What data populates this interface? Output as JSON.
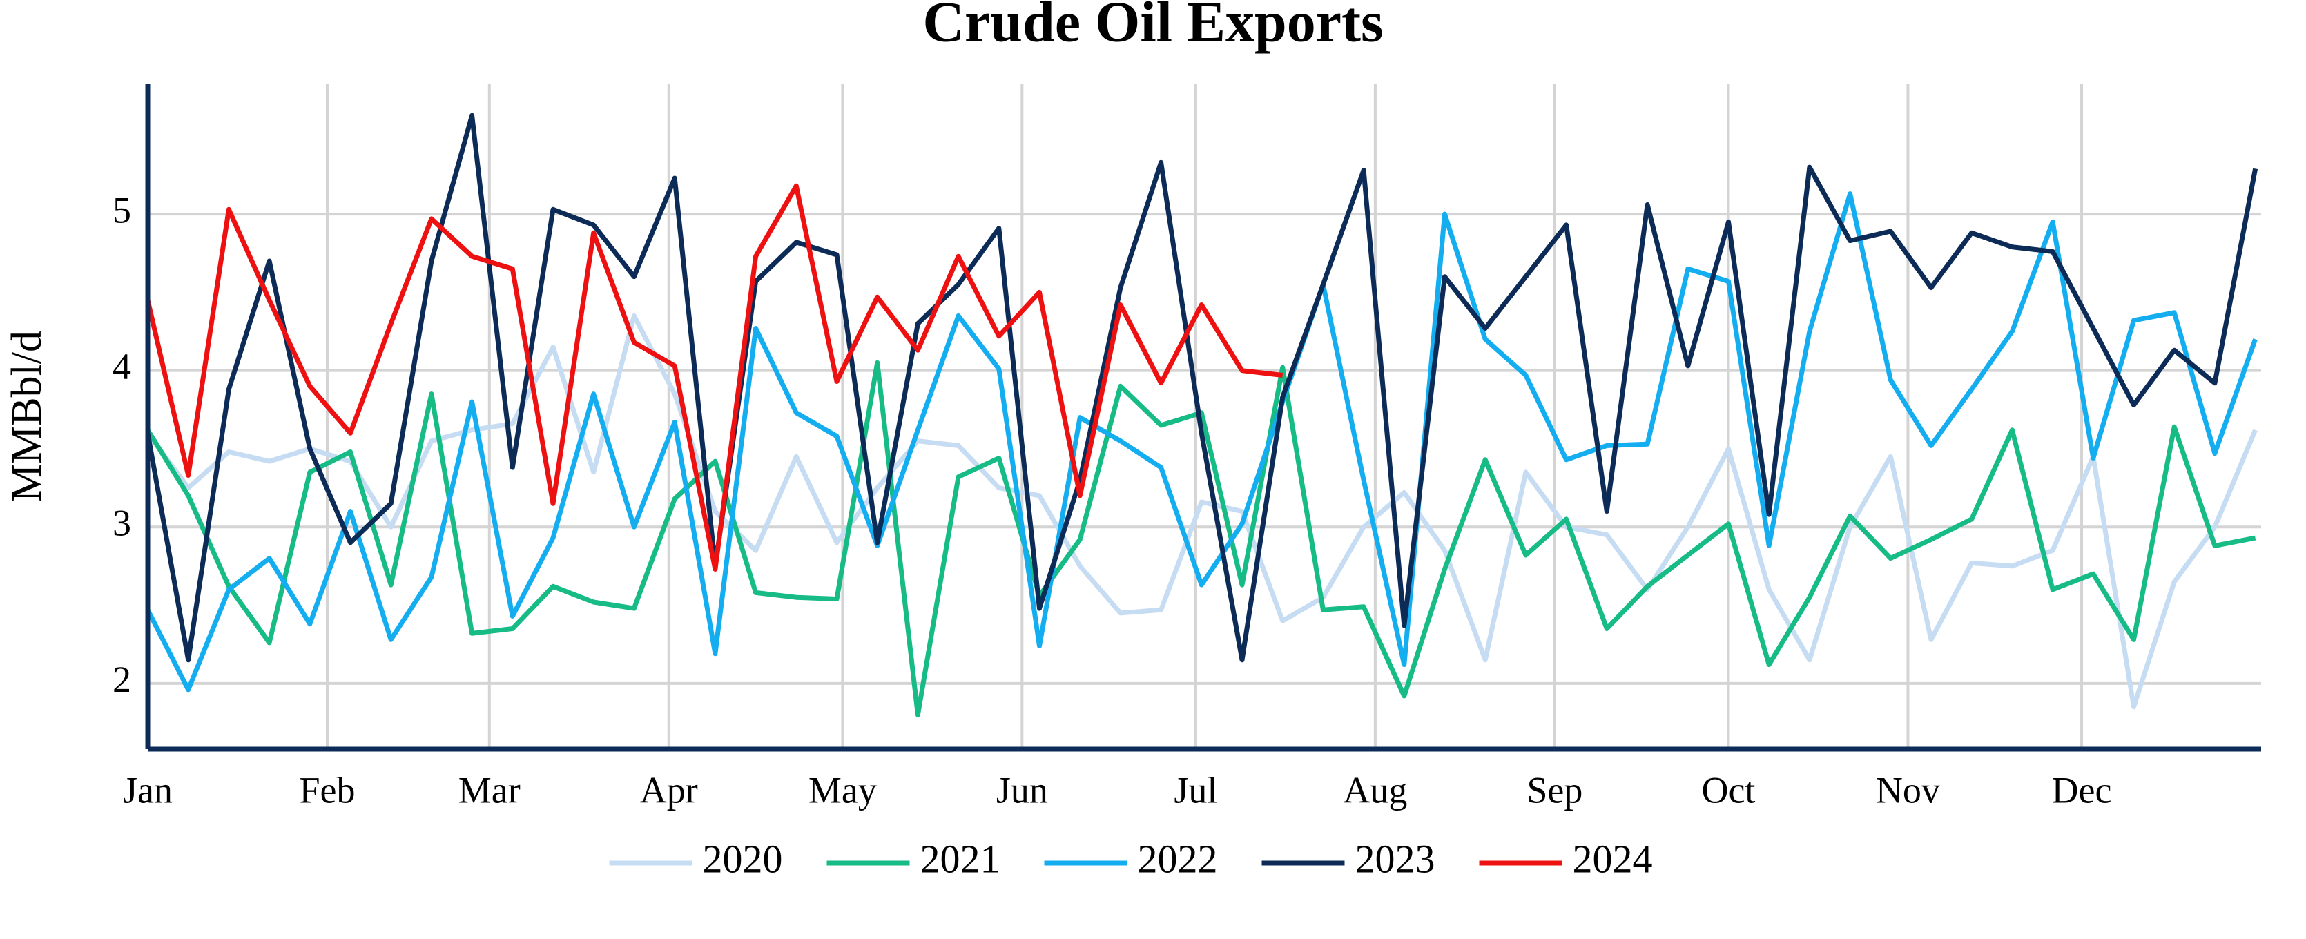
{
  "chart_data": {
    "type": "line",
    "title": "Crude Oil Exports",
    "y_label": "MMBbl/d",
    "x": [
      0,
      7,
      14,
      21,
      28,
      35,
      42,
      49,
      56,
      63,
      70,
      77,
      84,
      91,
      98,
      105,
      112,
      119,
      126,
      133,
      140,
      147,
      154,
      161,
      168,
      175,
      182,
      189,
      196,
      203,
      210,
      217,
      224,
      231,
      238,
      245,
      252,
      259,
      266,
      273,
      280,
      287,
      294,
      301,
      308,
      315,
      322,
      329,
      336,
      343,
      350,
      357,
      364
    ],
    "xlim": [
      0,
      365
    ],
    "xticks": [
      {
        "value": 0,
        "label": "Jan"
      },
      {
        "value": 31,
        "label": "Feb"
      },
      {
        "value": 59,
        "label": "Mar"
      },
      {
        "value": 90,
        "label": "Apr"
      },
      {
        "value": 120,
        "label": "May"
      },
      {
        "value": 151,
        "label": "Jun"
      },
      {
        "value": 181,
        "label": "Jul"
      },
      {
        "value": 212,
        "label": "Aug"
      },
      {
        "value": 243,
        "label": "Sep"
      },
      {
        "value": 273,
        "label": "Oct"
      },
      {
        "value": 304,
        "label": "Nov"
      },
      {
        "value": 334,
        "label": "Dec"
      }
    ],
    "ylim": [
      1.58,
      5.83
    ],
    "yticks": [
      2,
      3,
      4,
      5
    ],
    "grid": true,
    "legend": "bottom",
    "series": [
      {
        "name": "2020",
        "color": "#c6dcf2",
        "values": [
          3.6,
          3.25,
          3.48,
          3.42,
          3.5,
          3.42,
          3.0,
          3.55,
          3.62,
          3.66,
          4.15,
          3.35,
          4.35,
          3.85,
          3.1,
          2.85,
          3.45,
          2.9,
          3.25,
          3.55,
          3.52,
          3.25,
          3.2,
          2.75,
          2.45,
          2.47,
          3.16,
          3.1,
          2.4,
          2.55,
          3.0,
          3.22,
          2.85,
          2.15,
          3.35,
          3.0,
          2.95,
          2.6,
          3.0,
          3.5,
          2.6,
          2.15,
          3.0,
          3.45,
          2.28,
          2.77,
          2.75,
          2.85,
          3.45,
          1.85,
          2.65,
          3.0,
          3.62
        ]
      },
      {
        "name": "2021",
        "color": "#16bb86",
        "values": [
          3.62,
          3.2,
          2.62,
          2.26,
          3.35,
          3.48,
          2.63,
          3.85,
          2.32,
          2.35,
          2.62,
          2.52,
          2.48,
          3.18,
          3.42,
          2.58,
          2.55,
          2.54,
          4.05,
          1.8,
          3.32,
          3.44,
          2.56,
          2.92,
          3.9,
          3.65,
          3.73,
          2.63,
          4.02,
          2.47,
          2.49,
          1.92,
          2.73,
          3.43,
          2.82,
          3.05,
          2.35,
          2.62,
          2.82,
          3.02,
          2.12,
          2.55,
          3.07,
          2.8,
          2.92,
          3.05,
          3.62,
          2.6,
          2.7,
          2.28,
          3.64,
          2.88,
          2.93
        ]
      },
      {
        "name": "2022",
        "color": "#14aef0",
        "values": [
          2.47,
          1.96,
          2.6,
          2.8,
          2.38,
          3.1,
          2.28,
          2.68,
          3.8,
          2.43,
          2.93,
          3.85,
          3.0,
          3.67,
          2.19,
          4.27,
          3.73,
          3.58,
          2.88,
          3.62,
          4.35,
          4.01,
          2.24,
          3.7,
          3.55,
          3.38,
          2.63,
          3.02,
          3.8,
          4.55,
          3.3,
          2.12,
          5.0,
          4.2,
          3.97,
          3.43,
          3.52,
          3.53,
          4.65,
          4.57,
          2.88,
          4.25,
          5.13,
          3.94,
          3.52,
          3.88,
          4.25,
          4.95,
          3.44,
          4.32,
          4.37,
          3.47,
          4.2
        ]
      },
      {
        "name": "2023",
        "color": "#0d2b57",
        "values": [
          3.6,
          2.15,
          3.88,
          4.7,
          3.5,
          2.9,
          3.15,
          4.7,
          5.63,
          3.38,
          5.03,
          4.93,
          4.6,
          5.23,
          2.75,
          4.57,
          4.82,
          4.74,
          2.9,
          4.3,
          4.55,
          4.91,
          2.48,
          3.3,
          4.53,
          5.33,
          3.6,
          2.15,
          3.83,
          4.55,
          5.28,
          2.37,
          4.6,
          4.27,
          4.6,
          4.93,
          3.1,
          5.06,
          4.03,
          4.95,
          3.08,
          5.3,
          4.83,
          4.89,
          4.53,
          4.88,
          4.79,
          4.76,
          4.27,
          3.78,
          4.13,
          3.92,
          5.29
        ]
      },
      {
        "name": "2024",
        "color": "#ee1111",
        "values": [
          4.45,
          3.33,
          5.03,
          4.45,
          3.9,
          3.6,
          4.3,
          4.97,
          4.73,
          4.65,
          3.15,
          4.88,
          4.18,
          4.03,
          2.73,
          4.73,
          5.18,
          3.93,
          4.47,
          4.13,
          4.73,
          4.22,
          4.5,
          3.2,
          4.42,
          3.92,
          4.42,
          4.0,
          3.97,
          null,
          null,
          null,
          null,
          null,
          null,
          null,
          null,
          null,
          null,
          null,
          null,
          null,
          null,
          null,
          null,
          null,
          null,
          null,
          null,
          null,
          null,
          null,
          null
        ]
      }
    ]
  }
}
